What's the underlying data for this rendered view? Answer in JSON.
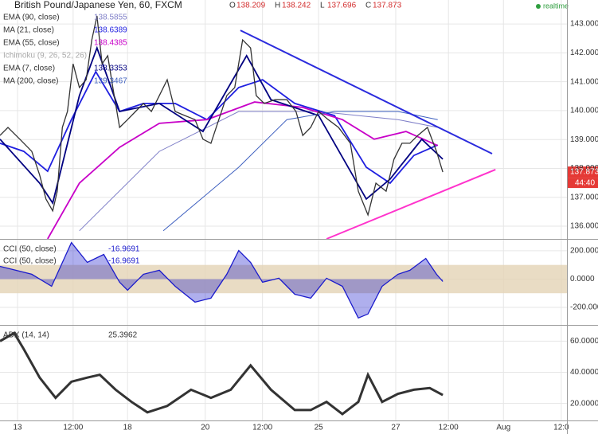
{
  "chart_data": [
    {
      "type": "line",
      "title": "British Pound/Japanese Yen, 60, FXCM",
      "realtime": "realtime",
      "ohlc": [
        {
          "label": "O",
          "value": 138.209
        },
        {
          "label": "H",
          "value": 138.242
        },
        {
          "label": "L",
          "value": 137.696
        },
        {
          "label": "C",
          "value": 137.873
        }
      ],
      "last_price": 137.873,
      "countdown": "44:40",
      "color": "#333333",
      "x": [
        0,
        1.4,
        3.5,
        5.6,
        7.0,
        8.1,
        9.3,
        10.1,
        11.0,
        11.9,
        12.9,
        14.0,
        15.2,
        16.2,
        17.1,
        18.0,
        19.0,
        19.9,
        21.1,
        22.5,
        23.9,
        25.3,
        26.7,
        28.1,
        29.5,
        30.9,
        32.6,
        34.4,
        35.8,
        37.2,
        38.6,
        40.0,
        41.4,
        42.8,
        44.2,
        45.2,
        46.6,
        48.5,
        50.6,
        52.2,
        53.4,
        54.8,
        56.2,
        57.9,
        59.7,
        61.8,
        63.2,
        64.9,
        66.3,
        68.1,
        69.5,
        70.9,
        72.3,
        73.7,
        75.4,
        77.0,
        78.1
      ],
      "values": [
        139.14,
        139.42,
        139.01,
        138.59,
        137.77,
        136.94,
        136.53,
        137.21,
        139.42,
        139.97,
        141.62,
        140.8,
        141.07,
        142.45,
        143.28,
        141.62,
        141.9,
        140.8,
        139.42,
        139.69,
        139.97,
        140.25,
        139.97,
        140.52,
        141.07,
        139.97,
        139.83,
        139.69,
        139.01,
        138.87,
        139.69,
        140.52,
        140.8,
        142.45,
        142.17,
        140.52,
        140.25,
        140.38,
        140.38,
        139.97,
        139.14,
        139.42,
        139.97,
        139.69,
        139.42,
        138.87,
        137.21,
        136.39,
        137.49,
        137.21,
        138.32,
        138.87,
        138.87,
        139.14,
        139.42,
        138.59,
        137.873
      ],
      "series": [
        {
          "name": "EMA (90, close)",
          "last": 138.5855,
          "color": "#7f7fc8",
          "x": [
            14.0,
            28.1,
            42.1,
            56.2,
            70.2,
            77.2
          ],
          "values": [
            135.84,
            138.59,
            139.97,
            139.97,
            139.69,
            139.42
          ]
        },
        {
          "name": "MA (21, close)",
          "last": 138.6389,
          "color": "#1f1fe0",
          "x": [
            0,
            4.2,
            8.4,
            12.6,
            16.9,
            21.1,
            25.3,
            30.9,
            36.5,
            42.1,
            46.3,
            52.0,
            59.0,
            64.6,
            68.8,
            73.0,
            77.2
          ],
          "values": [
            138.87,
            138.59,
            137.9,
            139.69,
            141.35,
            139.97,
            140.25,
            140.25,
            139.69,
            140.8,
            141.07,
            140.25,
            139.83,
            138.04,
            137.49,
            138.45,
            138.81
          ]
        },
        {
          "name": "EMA (55, close)",
          "last": 138.4385,
          "color": "#c800c8",
          "x": [
            8.4,
            14.0,
            21.1,
            28.1,
            36.5,
            44.9,
            53.4,
            60.4,
            66.0,
            71.6,
            77.2
          ],
          "values": [
            135.56,
            137.49,
            138.73,
            139.56,
            139.69,
            140.3,
            140.11,
            139.69,
            139.01,
            139.28,
            138.79
          ]
        },
        {
          "name": "EMA (7, close)",
          "last": 138.3353,
          "color": "#000080",
          "x": [
            0,
            7.0,
            9.3,
            14.0,
            17.1,
            21.1,
            28.1,
            35.8,
            43.5,
            47.8,
            56.2,
            64.6,
            68.8,
            74.4,
            78.1
          ],
          "values": [
            139.01,
            137.49,
            136.8,
            140.52,
            142.17,
            139.97,
            140.25,
            139.28,
            141.9,
            140.38,
            139.83,
            136.94,
            137.63,
            139.01,
            138.32
          ]
        },
        {
          "name": "MA (200, close)",
          "last": 139.3467,
          "color": "#3d5fbf",
          "x": [
            28.8,
            42.1,
            50.6,
            59.0,
            70.2,
            77.2
          ],
          "values": [
            135.84,
            138.04,
            139.69,
            139.97,
            139.97,
            139.69
          ]
        }
      ],
      "hidden_study": "Ichimoku (9, 26, 52, 26)",
      "trendlines": [
        {
          "color": "#2b2bdd",
          "x": [
            42.4,
            86.8
          ],
          "values": [
            142.78,
            138.51
          ]
        },
        {
          "color": "#ff33cc",
          "x": [
            57.6,
            87.4
          ],
          "values": [
            135.56,
            137.96
          ]
        }
      ],
      "ylim": [
        135.56,
        143.83
      ],
      "yticks": [
        {
          "value": 136,
          "label": "136.000"
        },
        {
          "value": 137,
          "label": "137.000"
        },
        {
          "value": 138,
          "label": "138.000"
        },
        {
          "value": 139,
          "label": "139.000"
        },
        {
          "value": 140,
          "label": "140.000"
        },
        {
          "value": 141,
          "label": "141.000"
        },
        {
          "value": 142,
          "label": "142.000"
        },
        {
          "value": 143,
          "label": "143.000"
        }
      ]
    },
    {
      "type": "area",
      "legend": [
        {
          "name": "CCI (50, close)",
          "last": -16.9691
        },
        {
          "name": "CCI (50, close)",
          "last": -16.9691
        }
      ],
      "color": "#1a1acc",
      "band": [
        -100,
        100
      ],
      "band_color": "#e3d3b5",
      "x": [
        0,
        2.8,
        5.6,
        9.1,
        12.6,
        15.4,
        18.3,
        21.1,
        22.5,
        25.3,
        28.1,
        30.9,
        34.4,
        37.2,
        40.0,
        42.1,
        44.2,
        46.3,
        49.2,
        52.0,
        54.8,
        57.6,
        60.4,
        63.2,
        64.9,
        67.4,
        70.2,
        72.3,
        75.1,
        77.0,
        78.1
      ],
      "values": [
        90,
        62,
        34,
        -51,
        258,
        118,
        174,
        -22,
        -79,
        34,
        62,
        -51,
        -163,
        -135,
        34,
        202,
        118,
        -22,
        6,
        -107,
        -135,
        6,
        -51,
        -275,
        -247,
        -51,
        34,
        62,
        146,
        34,
        -16.9691
      ],
      "ylim": [
        -324,
        284
      ],
      "yticks": [
        {
          "value": 200,
          "label": "200.0000"
        },
        {
          "value": 0,
          "label": "0.0000"
        },
        {
          "value": -200,
          "label": "-200.0000"
        }
      ]
    },
    {
      "type": "line",
      "legend": [
        {
          "name": "ADX (14, 14)",
          "last": 25.3962
        }
      ],
      "color": "#333333",
      "x": [
        0,
        2.5,
        4.2,
        7.0,
        9.8,
        12.6,
        15.4,
        17.6,
        20.4,
        23.2,
        26.0,
        29.5,
        33.7,
        37.2,
        40.7,
        44.2,
        47.8,
        52.0,
        54.8,
        57.6,
        60.4,
        63.2,
        64.9,
        67.4,
        70.2,
        73.0,
        75.8,
        78.1
      ],
      "values": [
        60,
        65.2,
        54.8,
        36.6,
        23.6,
        34.0,
        36.6,
        38.4,
        28.8,
        21.0,
        14.3,
        18.4,
        28.8,
        23.6,
        28.8,
        44.4,
        28.8,
        15.8,
        15.8,
        21.0,
        13.2,
        21.0,
        38.4,
        21.0,
        26.2,
        28.8,
        29.9,
        25.3962
      ],
      "ylim": [
        9.1,
        70.4
      ],
      "yticks": [
        {
          "value": 20,
          "label": "20.0000"
        },
        {
          "value": 40,
          "label": "40.0000"
        },
        {
          "value": 60,
          "label": "60.0000"
        }
      ],
      "xlim": [
        0,
        100
      ],
      "xticks": [
        {
          "value": 3.1,
          "label": "13"
        },
        {
          "value": 12.9,
          "label": "12:00"
        },
        {
          "value": 22.5,
          "label": "18"
        },
        {
          "value": 36.2,
          "label": "20"
        },
        {
          "value": 46.3,
          "label": "12:00"
        },
        {
          "value": 56.2,
          "label": "25"
        },
        {
          "value": 69.8,
          "label": "27"
        },
        {
          "value": 79.1,
          "label": "12:00"
        },
        {
          "value": 88.8,
          "label": "Aug"
        },
        {
          "value": 99.0,
          "label": "12:0"
        }
      ]
    }
  ]
}
